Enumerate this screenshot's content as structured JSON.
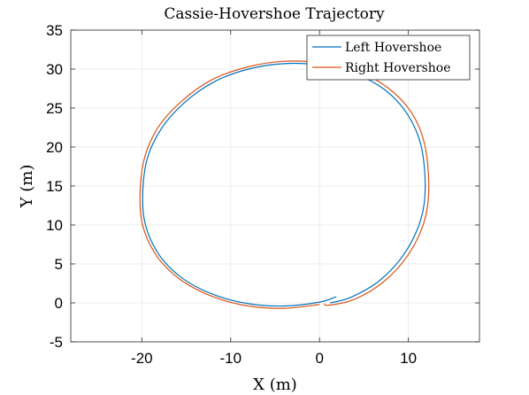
{
  "chart_data": {
    "type": "line",
    "title": "Cassie-Hovershoe Trajectory",
    "xlabel": "X (m)",
    "ylabel": "Y (m)",
    "xlim": [
      -28,
      18
    ],
    "ylim": [
      -5,
      35
    ],
    "xticks": [
      -20,
      -10,
      0,
      10
    ],
    "xtick_labels": [
      "-20",
      "-10",
      "0",
      "10"
    ],
    "yticks": [
      -5,
      0,
      5,
      10,
      15,
      20,
      25,
      30,
      35
    ],
    "ytick_labels": [
      "-5",
      "0",
      "5",
      "10",
      "15",
      "20",
      "25",
      "30",
      "35"
    ],
    "grid": true,
    "legend": "top-right",
    "series": [
      {
        "name": "Left Hovershoe",
        "color": "#0072BD",
        "x": [
          1.9,
          0,
          -4,
          -8,
          -12,
          -15.6,
          -18.3,
          -19.8,
          -19.6,
          -18.0,
          -15.3,
          -11.8,
          -8,
          -4,
          0,
          4,
          7.4,
          9.9,
          11.4,
          11.9,
          11.4,
          9.6,
          6.8,
          3.5,
          1.2
        ],
        "y": [
          0.8,
          0.1,
          -0.4,
          -0.1,
          1.1,
          3.3,
          6.6,
          11.2,
          17.5,
          22.0,
          25.6,
          28.4,
          30.0,
          30.7,
          30.5,
          29.4,
          27.3,
          24.2,
          20.3,
          15.0,
          10.7,
          6.4,
          2.9,
          0.7,
          0.0
        ]
      },
      {
        "name": "Right Hovershoe",
        "color": "#D95319",
        "x": [
          0,
          -4,
          -8,
          -12,
          -15.8,
          -18.6,
          -20.1,
          -19.9,
          -18.3,
          -15.5,
          -12,
          -8,
          -4,
          0,
          4.3,
          7.7,
          10.3,
          11.8,
          12.3,
          11.8,
          10,
          7.2,
          3.8,
          1.0,
          0.5
        ],
        "y": [
          -0.2,
          -0.7,
          -0.4,
          0.8,
          3.1,
          6.5,
          11.1,
          17.6,
          22.3,
          25.9,
          28.7,
          30.3,
          31.0,
          30.8,
          29.7,
          27.6,
          24.5,
          20.5,
          15.0,
          10.5,
          6.2,
          2.7,
          0.4,
          -0.3,
          -0.1
        ]
      }
    ]
  }
}
